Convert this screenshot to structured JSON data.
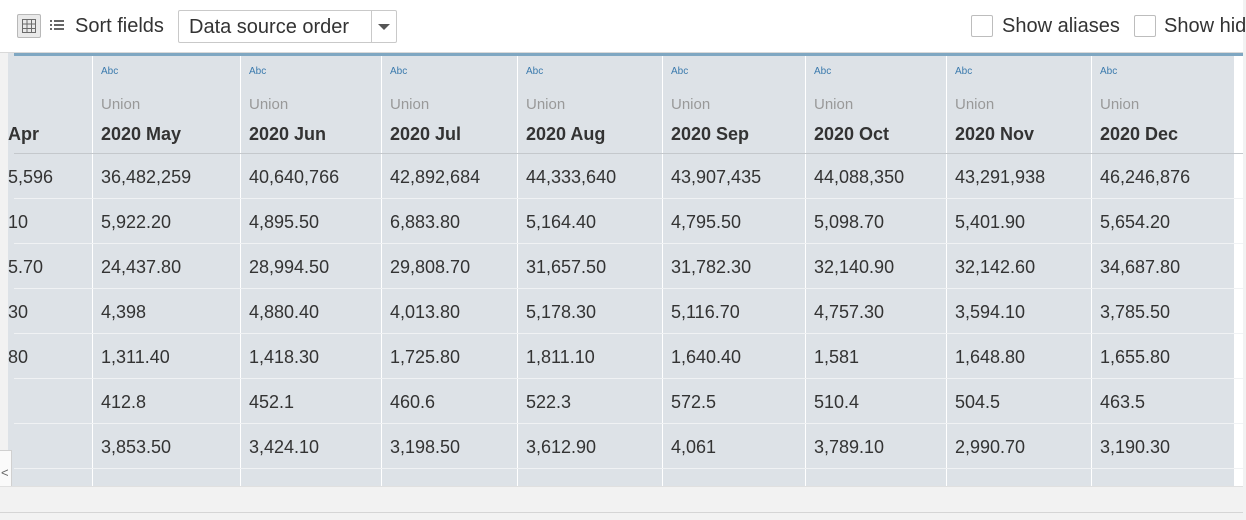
{
  "toolbar": {
    "sort_label": "Sort fields",
    "sort_value": "Data source order",
    "show_aliases": "Show aliases",
    "show_hidden": "Show hid"
  },
  "partial_column": {
    "name": "Apr",
    "cells": [
      "5,596",
      "10",
      "5.70",
      "30",
      "80",
      "",
      "",
      ""
    ]
  },
  "columns": [
    {
      "type": "Abc",
      "source": "Union",
      "name": "2020 May",
      "cells": [
        "36,482,259",
        "5,922.20",
        "24,437.80",
        "4,398",
        "1,311.40",
        "412.8",
        "3,853.50",
        "..."
      ]
    },
    {
      "type": "Abc",
      "source": "Union",
      "name": "2020 Jun",
      "cells": [
        "40,640,766",
        "4,895.50",
        "28,994.50",
        "4,880.40",
        "1,418.30",
        "452.1",
        "3,424.10",
        "..."
      ]
    },
    {
      "type": "Abc",
      "source": "Union",
      "name": "2020 Jul",
      "cells": [
        "42,892,684",
        "6,883.80",
        "29,808.70",
        "4,013.80",
        "1,725.80",
        "460.6",
        "3,198.50",
        "..."
      ]
    },
    {
      "type": "Abc",
      "source": "Union",
      "name": "2020 Aug",
      "cells": [
        "44,333,640",
        "5,164.40",
        "31,657.50",
        "5,178.30",
        "1,811.10",
        "522.3",
        "3,612.90",
        "..."
      ]
    },
    {
      "type": "Abc",
      "source": "Union",
      "name": "2020 Sep",
      "cells": [
        "43,907,435",
        "4,795.50",
        "31,782.30",
        "5,116.70",
        "1,640.40",
        "572.5",
        "4,061",
        "..."
      ]
    },
    {
      "type": "Abc",
      "source": "Union",
      "name": "2020 Oct",
      "cells": [
        "44,088,350",
        "5,098.70",
        "32,140.90",
        "4,757.30",
        "1,581",
        "510.4",
        "3,789.10",
        "..."
      ]
    },
    {
      "type": "Abc",
      "source": "Union",
      "name": "2020 Nov",
      "cells": [
        "43,291,938",
        "5,401.90",
        "32,142.60",
        "3,594.10",
        "1,648.80",
        "504.5",
        "2,990.70",
        "..."
      ]
    },
    {
      "type": "Abc",
      "source": "Union",
      "name": "2020 Dec",
      "cells": [
        "46,246,876",
        "5,654.20",
        "34,687.80",
        "3,785.50",
        "1,655.80",
        "463.5",
        "3,190.30",
        "..."
      ]
    }
  ],
  "scroll_left_glyph": "<"
}
